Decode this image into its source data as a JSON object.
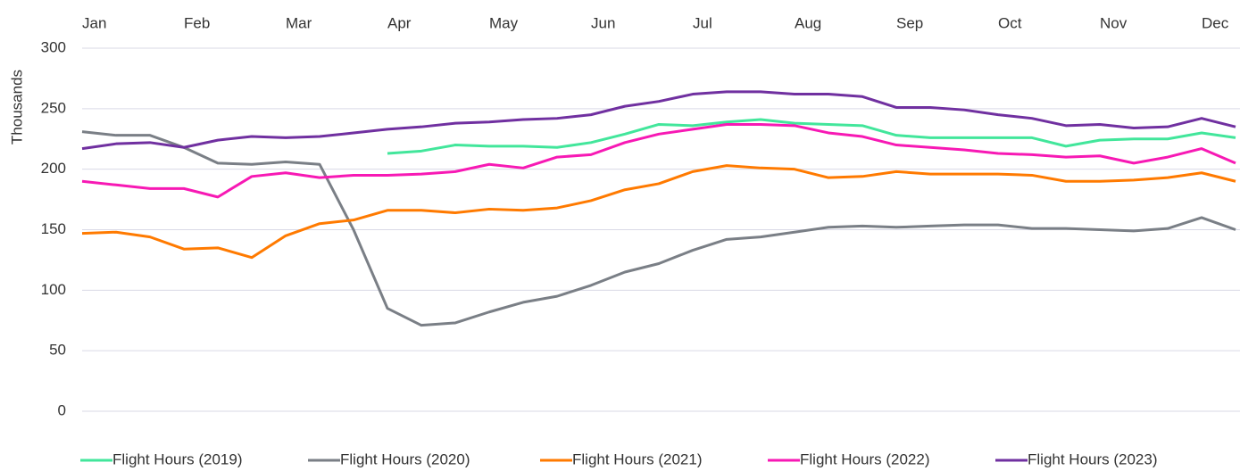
{
  "chart_data": {
    "type": "line",
    "y_label": "Thousands",
    "categories": [
      "Jan",
      null,
      null,
      "Feb",
      null,
      null,
      "Mar",
      null,
      null,
      "Apr",
      null,
      null,
      "May",
      null,
      null,
      "Jun",
      null,
      null,
      "Jul",
      null,
      null,
      "Aug",
      null,
      null,
      "Sep",
      null,
      null,
      "Oct",
      null,
      null,
      "Nov",
      null,
      null,
      "Dec",
      null
    ],
    "ylim": [
      0,
      300
    ],
    "yticks": [
      0,
      50,
      100,
      150,
      200,
      250,
      300
    ],
    "grid": true,
    "legend": "bottom",
    "series": [
      {
        "name": "Flight Hours (2019)",
        "color": "#42e69b",
        "values": [
          null,
          null,
          null,
          null,
          null,
          null,
          null,
          null,
          null,
          213,
          215,
          220,
          219,
          219,
          218,
          222,
          229,
          237,
          236,
          239,
          241,
          238,
          237,
          236,
          228,
          226,
          226,
          226,
          226,
          219,
          224,
          225,
          225,
          230,
          226
        ]
      },
      {
        "name": "Flight Hours (2020)",
        "color": "#7a7f86",
        "values": [
          231,
          228,
          228,
          218,
          205,
          204,
          206,
          204,
          150,
          85,
          71,
          73,
          82,
          90,
          95,
          104,
          115,
          122,
          133,
          142,
          144,
          148,
          152,
          153,
          152,
          153,
          154,
          154,
          151,
          151,
          150,
          149,
          151,
          160,
          150
        ]
      },
      {
        "name": "Flight Hours (2021)",
        "color": "#ff7a00",
        "values": [
          147,
          148,
          144,
          134,
          135,
          127,
          145,
          155,
          158,
          166,
          166,
          164,
          167,
          166,
          168,
          174,
          183,
          188,
          198,
          203,
          201,
          200,
          193,
          194,
          198,
          196,
          196,
          196,
          195,
          190,
          190,
          191,
          193,
          197,
          190
        ]
      },
      {
        "name": "Flight Hours (2022)",
        "color": "#f719b4",
        "values": [
          190,
          187,
          184,
          184,
          177,
          194,
          197,
          193,
          195,
          195,
          196,
          198,
          204,
          201,
          210,
          212,
          222,
          229,
          233,
          237,
          237,
          236,
          230,
          227,
          220,
          218,
          216,
          213,
          212,
          210,
          211,
          205,
          210,
          217,
          205
        ]
      },
      {
        "name": "Flight Hours (2023)",
        "color": "#7030a0",
        "values": [
          217,
          221,
          222,
          218,
          224,
          227,
          226,
          227,
          230,
          233,
          235,
          238,
          239,
          241,
          242,
          245,
          252,
          256,
          262,
          264,
          264,
          262,
          262,
          260,
          251,
          251,
          249,
          245,
          242,
          236,
          237,
          234,
          235,
          242,
          235
        ]
      }
    ]
  }
}
